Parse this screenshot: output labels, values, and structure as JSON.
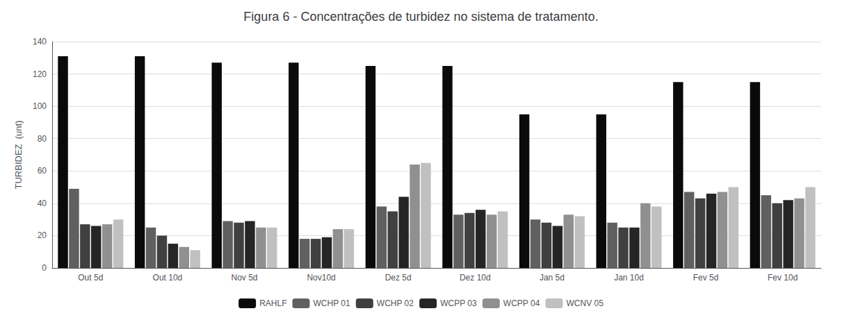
{
  "chart_data": {
    "type": "bar",
    "title": "Figura 6 - Concentrações de turbidez no sistema de tratamento.",
    "y_label": "TURBIDEZ  (unt)",
    "categories": [
      "Out 5d",
      "Out 10d",
      "Nov 5d",
      "Nov10d",
      "Dez 5d",
      "Dez 10d",
      "Jan 5d",
      "Jan 10d",
      "Fev 5d",
      "Fev 10d"
    ],
    "series": [
      {
        "name": "RAHLF",
        "color": "#0a0a0a",
        "values": [
          131,
          131,
          127,
          127,
          125,
          125,
          95,
          95,
          115,
          115
        ]
      },
      {
        "name": "WCHP 01",
        "color": "#606060",
        "values": [
          49,
          25,
          29,
          18,
          38,
          33,
          30,
          28,
          47,
          45
        ]
      },
      {
        "name": "WCHP 02",
        "color": "#404040",
        "values": [
          27,
          20,
          28,
          18,
          35,
          34,
          28,
          25,
          43,
          40
        ]
      },
      {
        "name": "WCPP 03",
        "color": "#252525",
        "values": [
          26,
          15,
          29,
          19,
          44,
          36,
          26,
          25,
          46,
          42
        ]
      },
      {
        "name": "WCPP 04",
        "color": "#909090",
        "values": [
          27,
          13,
          25,
          24,
          64,
          33,
          33,
          40,
          47,
          43
        ]
      },
      {
        "name": "WCNV 05",
        "color": "#c0c0c0",
        "values": [
          30,
          11,
          25,
          24,
          65,
          35,
          32,
          38,
          50,
          50
        ]
      }
    ],
    "ylim": [
      0,
      140
    ],
    "yticks": [
      0,
      20,
      40,
      60,
      80,
      100,
      120,
      140
    ],
    "grid": true,
    "legend": "bottom"
  }
}
